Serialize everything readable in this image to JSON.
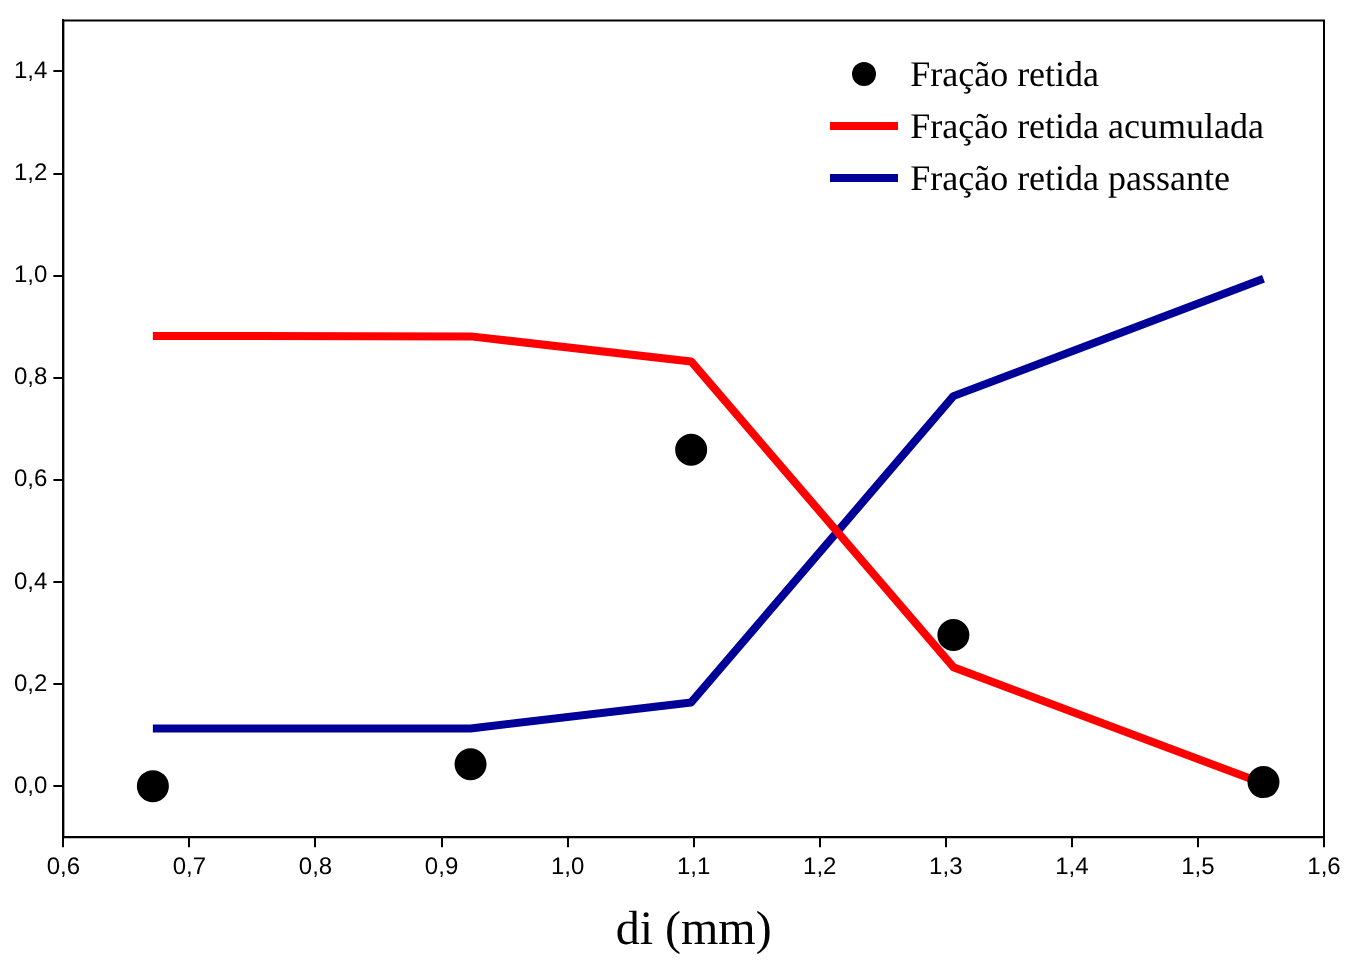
{
  "chart_data": {
    "type": "line",
    "xlabel": "di (mm)",
    "xlim": [
      0.6,
      1.6
    ],
    "xticks": [
      {
        "value": 0.6,
        "label": "0,6"
      },
      {
        "value": 0.7,
        "label": "0,7"
      },
      {
        "value": 0.8,
        "label": "0,8"
      },
      {
        "value": 0.9,
        "label": "0,9"
      },
      {
        "value": 1.0,
        "label": "1,0"
      },
      {
        "value": 1.1,
        "label": "1,1"
      },
      {
        "value": 1.2,
        "label": "1,2"
      },
      {
        "value": 1.3,
        "label": "1,3"
      },
      {
        "value": 1.4,
        "label": "1,4"
      },
      {
        "value": 1.5,
        "label": "1,5"
      },
      {
        "value": 1.6,
        "label": "1,6"
      }
    ],
    "ylim": [
      -0.1,
      1.5
    ],
    "yticks": [
      {
        "value": 0.0,
        "label": "0,0"
      },
      {
        "value": 0.2,
        "label": "0,2"
      },
      {
        "value": 0.4,
        "label": "0,4"
      },
      {
        "value": 0.6,
        "label": "0,6"
      },
      {
        "value": 0.8,
        "label": "0,8"
      },
      {
        "value": 1.0,
        "label": "1,0"
      },
      {
        "value": 1.2,
        "label": "1,2"
      },
      {
        "value": 1.4,
        "label": "1,4"
      }
    ],
    "grid": false,
    "legend": "top right",
    "series": [
      {
        "name": "Fração retida",
        "type": "scatter",
        "marker": "circle",
        "color": "#000000",
        "x": [
          0.671,
          0.923,
          1.098,
          1.306,
          1.552
        ],
        "values": [
          0.0,
          0.043,
          0.659,
          0.296,
          0.008
        ]
      },
      {
        "name": "Fração retida acumulada",
        "marker": "none",
        "color": "#ff0000",
        "x": [
          0.671,
          0.923,
          1.098,
          1.306,
          1.552
        ],
        "values": [
          0.882,
          0.881,
          0.832,
          0.233,
          0.005
        ]
      },
      {
        "name": "Fração retida passante",
        "marker": "none",
        "color": "#000099",
        "x": [
          0.671,
          0.923,
          1.098,
          1.306,
          1.552
        ],
        "values": [
          0.113,
          0.113,
          0.164,
          0.764,
          0.994
        ]
      }
    ]
  }
}
